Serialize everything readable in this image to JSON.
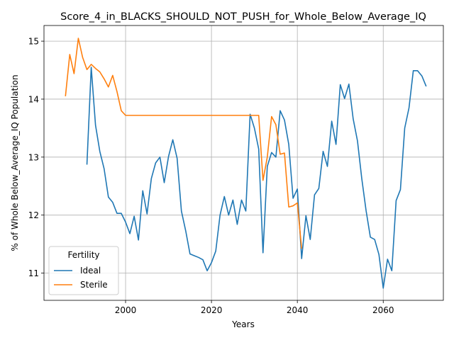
{
  "chart_data": {
    "type": "line",
    "title": "Score_4_in_BLACKS_SHOULD_NOT_PUSH_for_Whole_Below_Average_IQ",
    "xlabel": "Years",
    "ylabel": "% of Whole Below_Average_IQ Population",
    "xlim": [
      1981,
      2074
    ],
    "ylim": [
      10.53,
      15.27
    ],
    "xticks": [
      2000,
      2020,
      2040,
      2060
    ],
    "yticks": [
      11,
      12,
      13,
      14,
      15
    ],
    "grid": true,
    "legend": {
      "title": "Fertility",
      "position": "lower-left"
    },
    "series": [
      {
        "name": "Ideal",
        "color": "#1f77b4",
        "points": [
          [
            1991,
            12.87
          ],
          [
            1992,
            14.55
          ],
          [
            1993,
            13.55
          ],
          [
            1994,
            13.1
          ],
          [
            1995,
            12.8
          ],
          [
            1996,
            12.31
          ],
          [
            1997,
            12.22
          ],
          [
            1998,
            12.03
          ],
          [
            1999,
            12.03
          ],
          [
            2000,
            11.88
          ],
          [
            2001,
            11.68
          ],
          [
            2002,
            11.98
          ],
          [
            2003,
            11.57
          ],
          [
            2004,
            12.42
          ],
          [
            2005,
            12.02
          ],
          [
            2006,
            12.63
          ],
          [
            2007,
            12.9
          ],
          [
            2008,
            13.0
          ],
          [
            2009,
            12.56
          ],
          [
            2010,
            13.01
          ],
          [
            2011,
            13.3
          ],
          [
            2012,
            12.98
          ],
          [
            2013,
            12.07
          ],
          [
            2014,
            11.73
          ],
          [
            2015,
            11.33
          ],
          [
            2016,
            11.3
          ],
          [
            2017,
            11.27
          ],
          [
            2018,
            11.23
          ],
          [
            2019,
            11.04
          ],
          [
            2020,
            11.18
          ],
          [
            2021,
            11.38
          ],
          [
            2022,
            12.0
          ],
          [
            2023,
            12.32
          ],
          [
            2024,
            12.0
          ],
          [
            2025,
            12.26
          ],
          [
            2026,
            11.84
          ],
          [
            2027,
            12.26
          ],
          [
            2028,
            12.07
          ],
          [
            2029,
            13.74
          ],
          [
            2030,
            13.5
          ],
          [
            2031,
            13.14
          ],
          [
            2032,
            11.35
          ],
          [
            2033,
            12.84
          ],
          [
            2034,
            13.08
          ],
          [
            2035,
            13.0
          ],
          [
            2036,
            13.8
          ],
          [
            2037,
            13.64
          ],
          [
            2038,
            13.22
          ],
          [
            2039,
            12.29
          ],
          [
            2040,
            12.45
          ],
          [
            2041,
            11.25
          ],
          [
            2042,
            11.99
          ],
          [
            2043,
            11.58
          ],
          [
            2044,
            12.35
          ],
          [
            2045,
            12.46
          ],
          [
            2046,
            13.1
          ],
          [
            2047,
            12.84
          ],
          [
            2048,
            13.62
          ],
          [
            2049,
            13.22
          ],
          [
            2050,
            14.25
          ],
          [
            2051,
            14.01
          ],
          [
            2052,
            14.26
          ],
          [
            2053,
            13.66
          ],
          [
            2054,
            13.28
          ],
          [
            2055,
            12.63
          ],
          [
            2056,
            12.08
          ],
          [
            2057,
            11.62
          ],
          [
            2058,
            11.58
          ],
          [
            2059,
            11.32
          ],
          [
            2060,
            10.74
          ],
          [
            2061,
            11.24
          ],
          [
            2062,
            11.04
          ],
          [
            2063,
            12.25
          ],
          [
            2064,
            12.44
          ],
          [
            2065,
            13.5
          ],
          [
            2066,
            13.85
          ],
          [
            2067,
            14.49
          ],
          [
            2068,
            14.49
          ],
          [
            2069,
            14.4
          ],
          [
            2070,
            14.22
          ]
        ]
      },
      {
        "name": "Sterile",
        "color": "#ff7f0e",
        "points": [
          [
            1986,
            14.05
          ],
          [
            1987,
            14.77
          ],
          [
            1988,
            14.44
          ],
          [
            1989,
            15.05
          ],
          [
            1990,
            14.72
          ],
          [
            1991,
            14.51
          ],
          [
            1992,
            14.6
          ],
          [
            1993,
            14.53
          ],
          [
            1994,
            14.47
          ],
          [
            1995,
            14.35
          ],
          [
            1996,
            14.21
          ],
          [
            1997,
            14.41
          ],
          [
            1998,
            14.13
          ],
          [
            1999,
            13.8
          ],
          [
            2000,
            13.72
          ],
          [
            2005,
            13.72
          ],
          [
            2010,
            13.72
          ],
          [
            2015,
            13.72
          ],
          [
            2020,
            13.72
          ],
          [
            2025,
            13.72
          ],
          [
            2031,
            13.72
          ],
          [
            2032,
            12.6
          ],
          [
            2033,
            13.0
          ],
          [
            2034,
            13.7
          ],
          [
            2035,
            13.56
          ],
          [
            2036,
            13.05
          ],
          [
            2037,
            13.07
          ],
          [
            2038,
            12.14
          ],
          [
            2039,
            12.16
          ],
          [
            2040,
            12.21
          ],
          [
            2041,
            11.42
          ]
        ]
      }
    ]
  }
}
